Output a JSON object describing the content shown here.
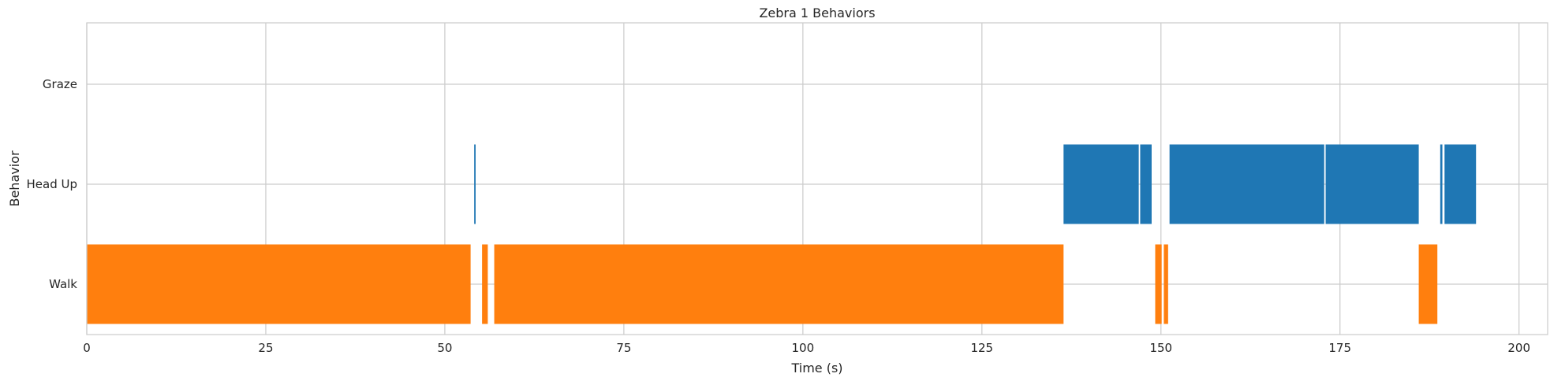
{
  "chart_data": {
    "type": "broken_barh",
    "title": "Zebra 1 Behaviors",
    "xlabel": "Time (s)",
    "ylabel": "Behavior",
    "xlim": [
      0,
      204
    ],
    "xticks": [
      0,
      25,
      50,
      75,
      100,
      125,
      150,
      175,
      200
    ],
    "categories": [
      "Walk",
      "Head Up",
      "Graze"
    ],
    "grid": true,
    "colors": {
      "Walk": "#ff7f0e",
      "Head Up": "#1f77b4",
      "Graze": "#2ca02c"
    },
    "segments": [
      {
        "category": "Walk",
        "start": 0.0,
        "end": 53.6
      },
      {
        "category": "Walk",
        "start": 55.2,
        "end": 56.0
      },
      {
        "category": "Walk",
        "start": 56.9,
        "end": 136.4
      },
      {
        "category": "Walk",
        "start": 149.2,
        "end": 150.1
      },
      {
        "category": "Walk",
        "start": 150.4,
        "end": 151.0
      },
      {
        "category": "Walk",
        "start": 186.0,
        "end": 188.6
      },
      {
        "category": "Head Up",
        "start": 54.1,
        "end": 54.3
      },
      {
        "category": "Head Up",
        "start": 136.4,
        "end": 146.9
      },
      {
        "category": "Head Up",
        "start": 147.1,
        "end": 148.7
      },
      {
        "category": "Head Up",
        "start": 151.2,
        "end": 172.8
      },
      {
        "category": "Head Up",
        "start": 173.0,
        "end": 186.0
      },
      {
        "category": "Head Up",
        "start": 189.0,
        "end": 189.3
      },
      {
        "category": "Head Up",
        "start": 189.6,
        "end": 194.0
      }
    ]
  }
}
